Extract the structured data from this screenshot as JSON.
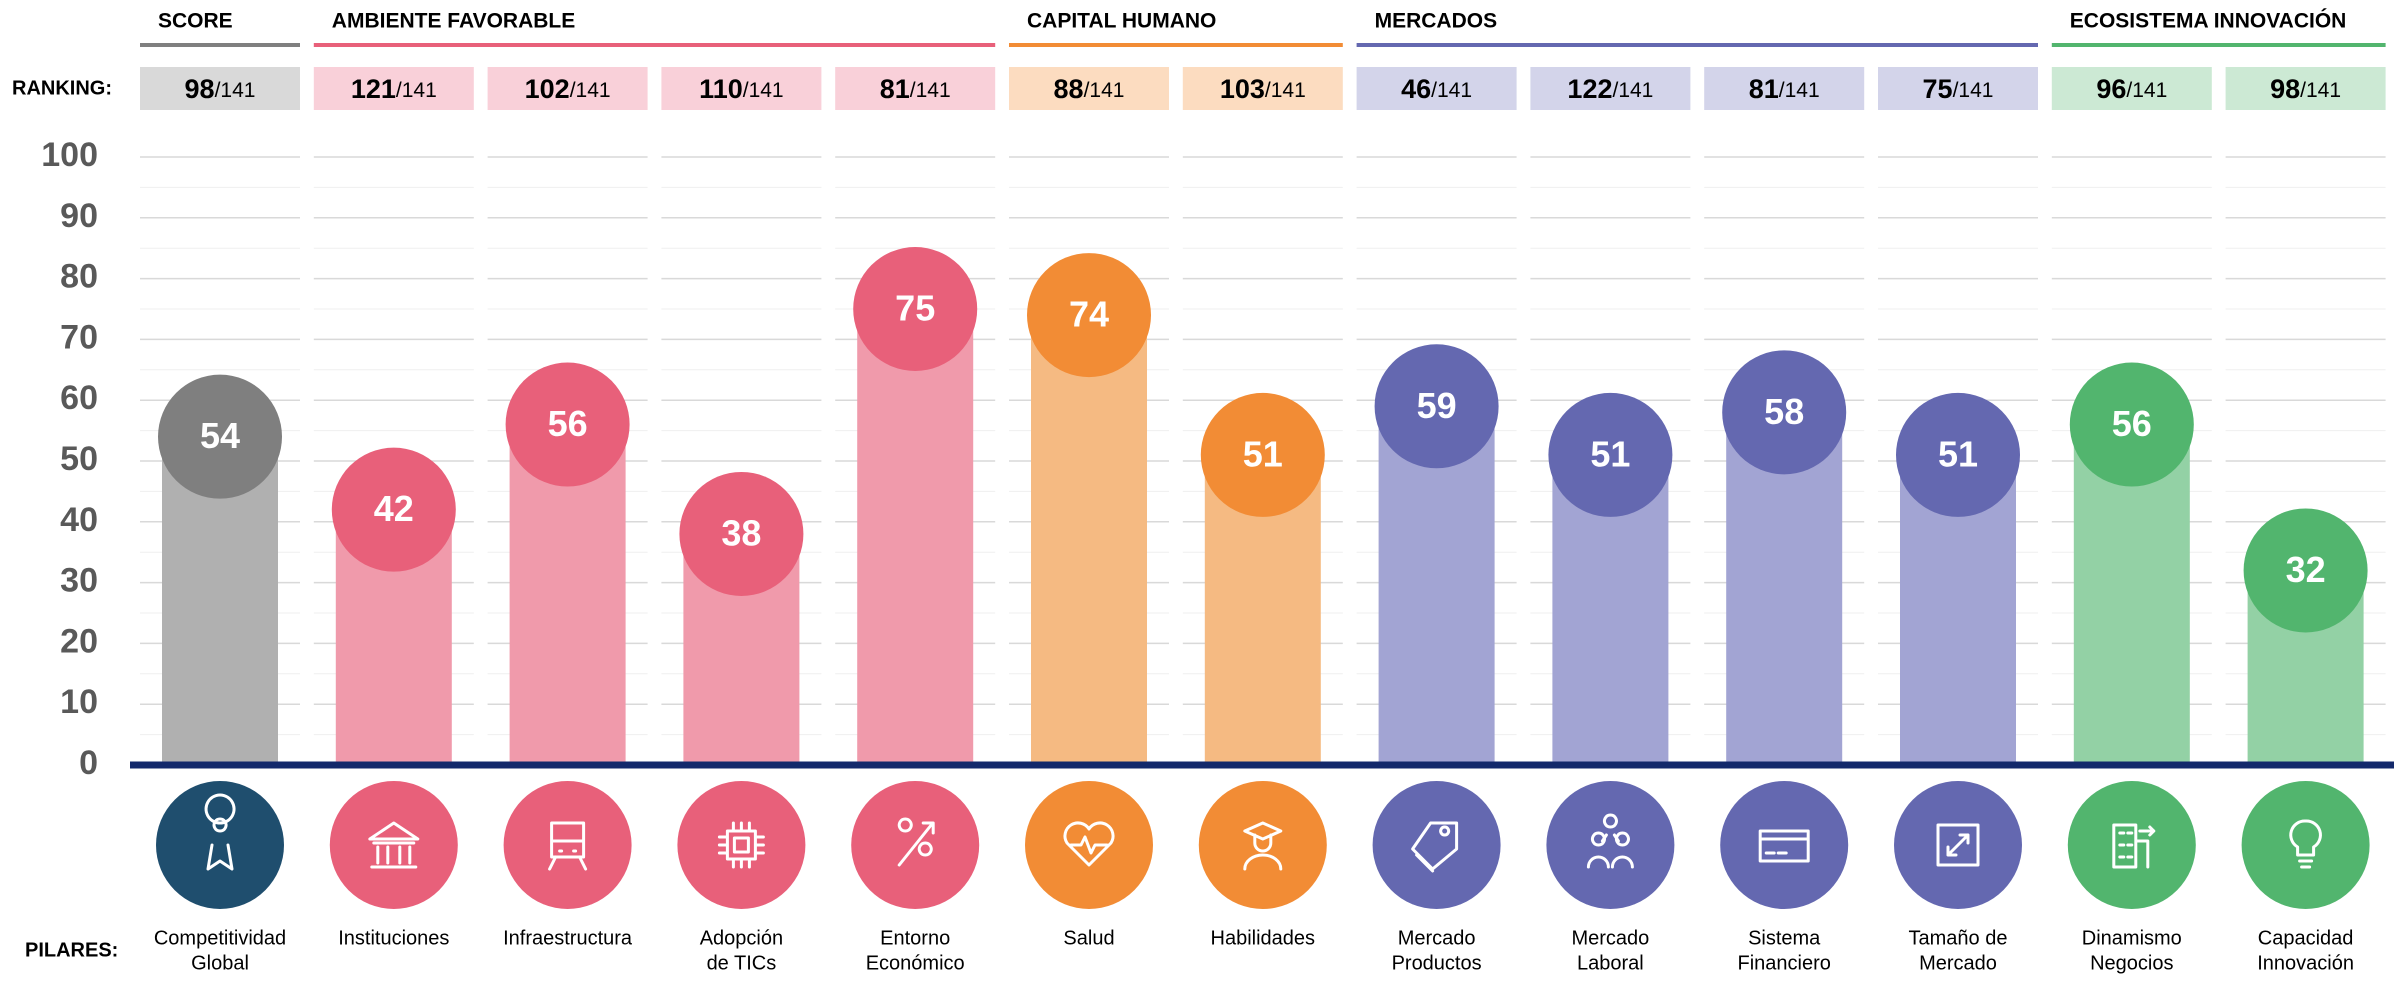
{
  "chart_data": {
    "type": "bar",
    "ranking_label": "RANKING:",
    "pillars_label": "PILARES:",
    "rank_total": "/141",
    "ylim": [
      0,
      100
    ],
    "yticks": [
      0,
      10,
      20,
      30,
      40,
      50,
      60,
      70,
      80,
      90,
      100
    ],
    "grid": true,
    "groups": [
      {
        "name": "SCORE",
        "color": "#7f7f7f",
        "pillars": [
          {
            "label": [
              "Competitividad",
              "Global"
            ],
            "value": 54,
            "rank": 98
          }
        ]
      },
      {
        "name": "AMBIENTE FAVORABLE",
        "color": "#e8607a",
        "pillars": [
          {
            "label": [
              "Instituciones"
            ],
            "value": 42,
            "rank": 121
          },
          {
            "label": [
              "Infraestructura"
            ],
            "value": 56,
            "rank": 102
          },
          {
            "label": [
              "Adopción",
              "de TICs"
            ],
            "value": 38,
            "rank": 110
          },
          {
            "label": [
              "Entorno",
              "Económico"
            ],
            "value": 75,
            "rank": 81
          }
        ]
      },
      {
        "name": "CAPITAL HUMANO",
        "color": "#f28c35",
        "pillars": [
          {
            "label": [
              "Salud"
            ],
            "value": 74,
            "rank": 88
          },
          {
            "label": [
              "Habilidades"
            ],
            "value": 51,
            "rank": 103
          }
        ]
      },
      {
        "name": "MERCADOS",
        "color": "#6468b0",
        "pillars": [
          {
            "label": [
              "Mercado",
              "Productos"
            ],
            "value": 59,
            "rank": 46
          },
          {
            "label": [
              "Mercado",
              "Laboral"
            ],
            "value": 51,
            "rank": 122
          },
          {
            "label": [
              "Sistema",
              "Financiero"
            ],
            "value": 58,
            "rank": 81
          },
          {
            "label": [
              "Tamaño de",
              "Mercado"
            ],
            "value": 51,
            "rank": 75
          }
        ]
      },
      {
        "name": "ECOSISTEMA INNOVACIÓN",
        "color": "#52b56e",
        "pillars": [
          {
            "label": [
              "Dinamismo",
              "Negocios"
            ],
            "value": 56,
            "rank": 96
          },
          {
            "label": [
              "Capacidad",
              "Innovación"
            ],
            "value": 32,
            "rank": 98
          }
        ]
      }
    ]
  }
}
